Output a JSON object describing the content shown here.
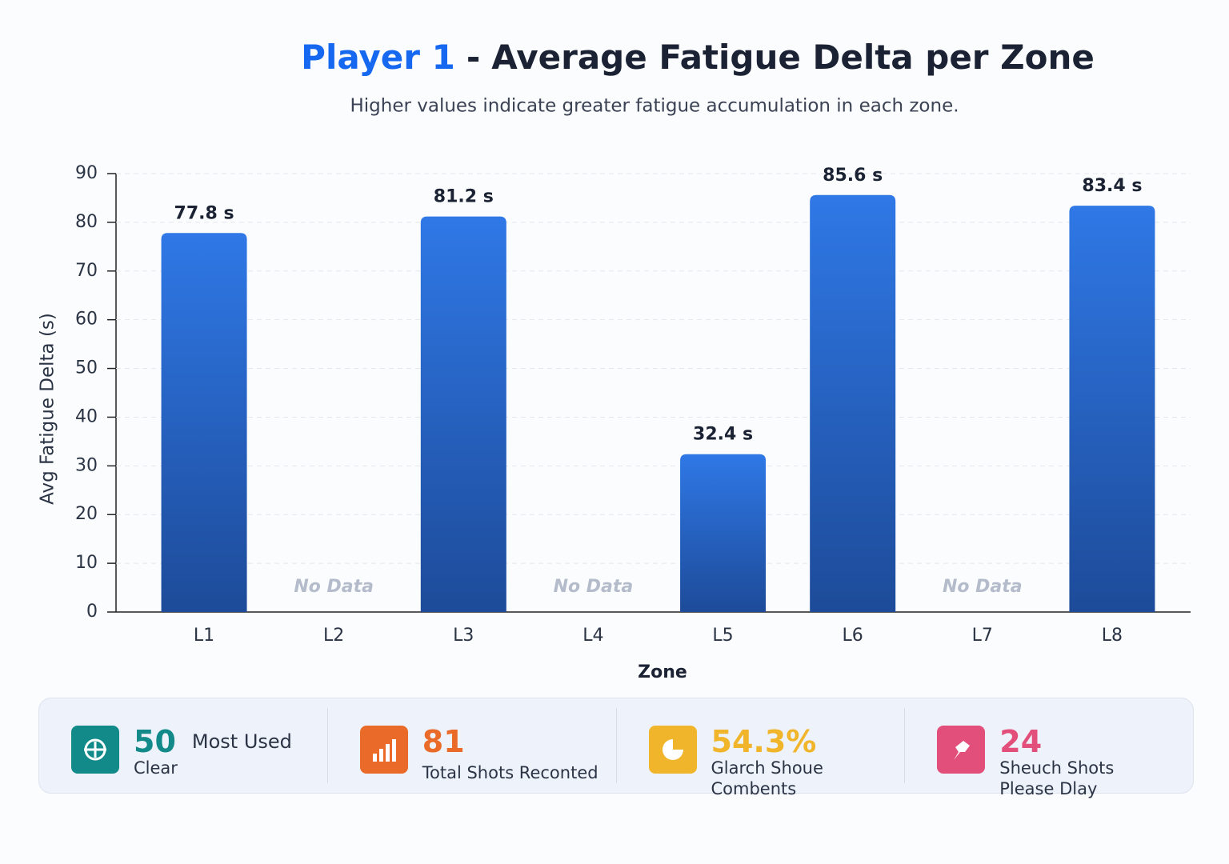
{
  "chart_data": {
    "type": "bar",
    "title_highlight": "Player 1",
    "title_separator": "-",
    "title": "Average Fatigue Delta per Zone",
    "subtitle": "Higher values indicate greater fatigue accumulation in each zone.",
    "x_label": "Zone",
    "y_label": "Avg Fatigue Delta (s)",
    "categories": [
      "L1",
      "L2",
      "L3",
      "L4",
      "L5",
      "L6",
      "L7",
      "L8"
    ],
    "values": [
      77.8,
      null,
      81.2,
      null,
      32.4,
      85.6,
      null,
      83.4
    ],
    "value_labels": [
      "77.8 s",
      null,
      "81.2 s",
      null,
      "32.4 s",
      "85.6 s",
      null,
      "83.4 s"
    ],
    "missing_label": "No Data",
    "color": "#2f78e6",
    "ylim": [
      0,
      90
    ],
    "yticks": [
      0,
      10,
      20,
      30,
      40,
      50,
      60,
      70,
      80,
      90
    ],
    "grid": true
  },
  "stats": [
    {
      "value": "50",
      "label": "Most Used",
      "sublabel": "Clear",
      "color": "#138a8a"
    },
    {
      "value": "81",
      "label": "Total Shots Reconted",
      "color": "#ea6a2a"
    },
    {
      "value": "54.3%",
      "label": "Glarch Shoue",
      "sublabel": "Combents",
      "color": "#f0b52a"
    },
    {
      "value": "24",
      "label": "Sheuch Shots",
      "sublabel": "Please Dlay",
      "color": "#e24f7a"
    }
  ]
}
